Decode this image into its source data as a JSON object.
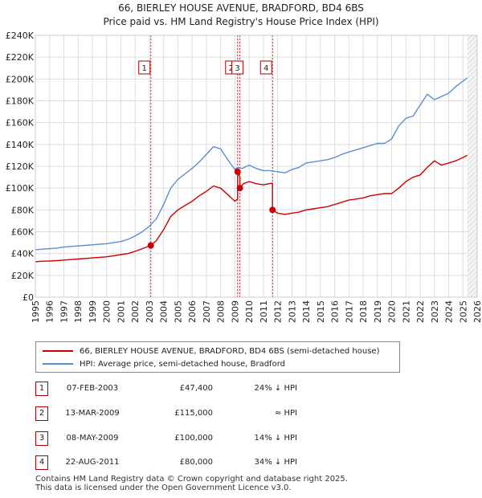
{
  "title_line1": "66, BIERLEY HOUSE AVENUE, BRADFORD, BD4 6BS",
  "title_line2": "Price paid vs. HM Land Registry's House Price Index (HPI)",
  "chart_data": {
    "type": "line",
    "title": "66, BIERLEY HOUSE AVENUE, BRADFORD, BD4 6BS — Price paid vs. HM Land Registry's House Price Index (HPI)",
    "xlabel": "",
    "ylabel": "",
    "xlim": [
      1995,
      2026
    ],
    "ylim": [
      0,
      240000
    ],
    "x_ticks": [
      "1995",
      "1996",
      "1997",
      "1998",
      "1999",
      "2000",
      "2001",
      "2002",
      "2003",
      "2004",
      "2005",
      "2006",
      "2007",
      "2008",
      "2009",
      "2010",
      "2011",
      "2012",
      "2013",
      "2014",
      "2015",
      "2016",
      "2017",
      "2018",
      "2019",
      "2020",
      "2021",
      "2022",
      "2023",
      "2024",
      "2025",
      "2026"
    ],
    "y_ticks": [
      {
        "value": 0,
        "label": "£0"
      },
      {
        "value": 20000,
        "label": "£20K"
      },
      {
        "value": 40000,
        "label": "£40K"
      },
      {
        "value": 60000,
        "label": "£60K"
      },
      {
        "value": 80000,
        "label": "£80K"
      },
      {
        "value": 100000,
        "label": "£100K"
      },
      {
        "value": 120000,
        "label": "£120K"
      },
      {
        "value": 140000,
        "label": "£140K"
      },
      {
        "value": 160000,
        "label": "£160K"
      },
      {
        "value": 180000,
        "label": "£180K"
      },
      {
        "value": 200000,
        "label": "£200K"
      },
      {
        "value": 220000,
        "label": "£220K"
      },
      {
        "value": 240000,
        "label": "£240K"
      }
    ],
    "grid": true,
    "series": [
      {
        "name": "HPI: Average price, semi-detached house, Bradford",
        "color": "#5b8fd4",
        "x": [
          1995.0,
          1995.5,
          1996.0,
          1996.5,
          1997.0,
          1997.5,
          1998.0,
          1998.5,
          1999.0,
          1999.5,
          2000.0,
          2000.5,
          2001.0,
          2001.5,
          2002.0,
          2002.5,
          2003.0,
          2003.5,
          2004.0,
          2004.5,
          2005.0,
          2005.5,
          2006.0,
          2006.5,
          2007.0,
          2007.5,
          2008.0,
          2008.5,
          2009.0,
          2009.2,
          2009.5,
          2010.0,
          2010.5,
          2011.0,
          2011.5,
          2012.0,
          2012.5,
          2013.0,
          2013.5,
          2014.0,
          2014.5,
          2015.0,
          2015.5,
          2016.0,
          2016.5,
          2017.0,
          2017.5,
          2018.0,
          2018.5,
          2019.0,
          2019.5,
          2020.0,
          2020.5,
          2021.0,
          2021.5,
          2022.0,
          2022.5,
          2023.0,
          2023.5,
          2024.0,
          2024.5,
          2025.0,
          2025.3
        ],
        "values": [
          43500,
          44000,
          44500,
          45000,
          46000,
          46500,
          47000,
          47500,
          48000,
          48500,
          49000,
          50000,
          51000,
          53000,
          56000,
          60000,
          65000,
          72000,
          85000,
          100000,
          108000,
          113000,
          118000,
          124000,
          131000,
          138000,
          136000,
          126000,
          117000,
          119000,
          118000,
          121000,
          118000,
          116000,
          116000,
          115000,
          114000,
          117000,
          119000,
          123000,
          124000,
          125000,
          126000,
          128000,
          131000,
          133000,
          135000,
          137000,
          139000,
          141000,
          141000,
          145000,
          157000,
          164000,
          166000,
          176000,
          186000,
          181000,
          184000,
          187000,
          193000,
          198000,
          201000
        ]
      },
      {
        "name": "66, BIERLEY HOUSE AVENUE, BRADFORD, BD4 6BS (semi-detached house)",
        "color": "#cc0000",
        "x": [
          1995.0,
          1995.5,
          1996.0,
          1996.5,
          1997.0,
          1997.5,
          1998.0,
          1998.5,
          1999.0,
          1999.5,
          2000.0,
          2000.5,
          2001.0,
          2001.5,
          2002.0,
          2002.5,
          2003.1,
          2003.5,
          2004.0,
          2004.5,
          2005.0,
          2005.5,
          2006.0,
          2006.5,
          2007.0,
          2007.5,
          2008.0,
          2008.5,
          2009.0,
          2009.19,
          2009.19,
          2009.35,
          2009.35,
          2009.6,
          2010.0,
          2010.5,
          2011.0,
          2011.4,
          2011.64,
          2011.64,
          2012.0,
          2012.5,
          2013.0,
          2013.5,
          2014.0,
          2014.5,
          2015.0,
          2015.5,
          2016.0,
          2016.5,
          2017.0,
          2017.5,
          2018.0,
          2018.5,
          2019.0,
          2019.5,
          2020.0,
          2020.5,
          2021.0,
          2021.5,
          2022.0,
          2022.5,
          2023.0,
          2023.5,
          2024.0,
          2024.5,
          2025.0,
          2025.3
        ],
        "values": [
          32500,
          33000,
          33200,
          33500,
          34000,
          34500,
          35000,
          35500,
          36000,
          36500,
          37000,
          38000,
          39000,
          40000,
          42000,
          44500,
          47400,
          52000,
          62000,
          74000,
          80000,
          84000,
          88000,
          93000,
          97000,
          102000,
          100000,
          94000,
          88000,
          90000,
          115000,
          110000,
          100000,
          104000,
          106000,
          104000,
          103000,
          104000,
          104500,
          80000,
          77000,
          76000,
          77000,
          78000,
          80000,
          81000,
          82000,
          83000,
          85000,
          87000,
          89000,
          90000,
          91000,
          93000,
          94000,
          95000,
          95000,
          100000,
          106000,
          110000,
          112000,
          119000,
          125000,
          121000,
          123000,
          125000,
          128000,
          130000
        ]
      }
    ],
    "sales": [
      {
        "label": "1",
        "x": 2003.1,
        "value": 47400
      },
      {
        "label": "2",
        "x": 2009.19,
        "value": 115000
      },
      {
        "label": "3",
        "x": 2009.35,
        "value": 100000
      },
      {
        "label": "4",
        "x": 2011.64,
        "value": 80000
      }
    ]
  },
  "legend": {
    "property_label": "66, BIERLEY HOUSE AVENUE, BRADFORD, BD4 6BS (semi-detached house)",
    "hpi_label": "HPI: Average price, semi-detached house, Bradford"
  },
  "transactions": [
    {
      "num": "1",
      "date": "07-FEB-2003",
      "price": "£47,400",
      "relation": "24% ↓ HPI"
    },
    {
      "num": "2",
      "date": "13-MAR-2009",
      "price": "£115,000",
      "relation": "≈ HPI"
    },
    {
      "num": "3",
      "date": "08-MAY-2009",
      "price": "£100,000",
      "relation": "14% ↓ HPI"
    },
    {
      "num": "4",
      "date": "22-AUG-2011",
      "price": "£80,000",
      "relation": "34% ↓ HPI"
    }
  ],
  "footer_line1": "Contains HM Land Registry data © Crown copyright and database right 2025.",
  "footer_line2": "This data is licensed under the Open Government Licence v3.0."
}
